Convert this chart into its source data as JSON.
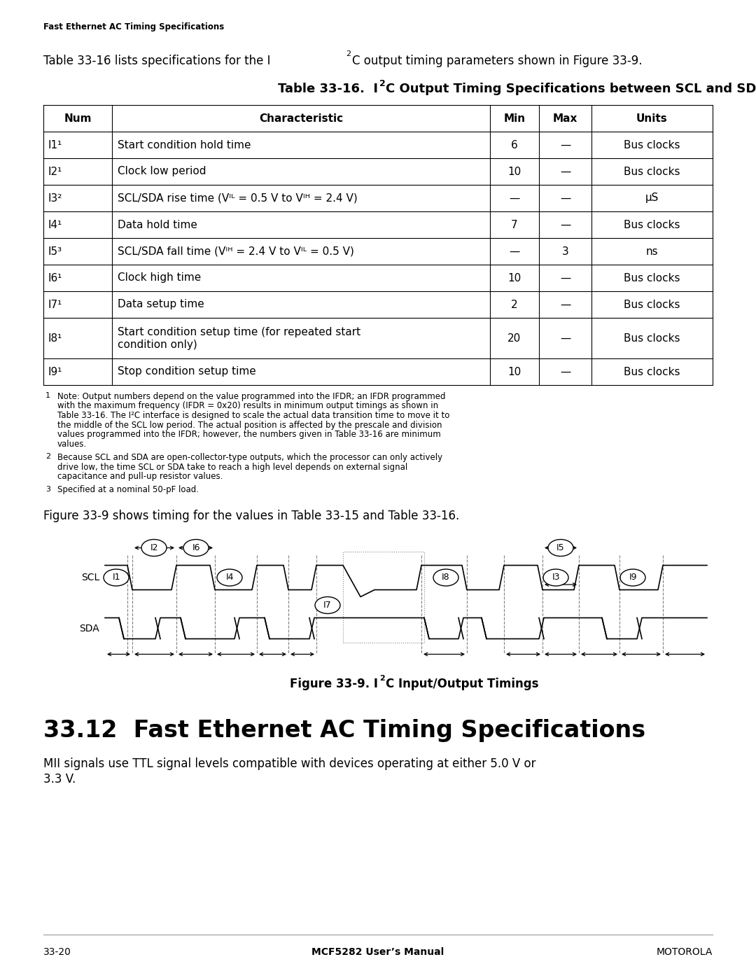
{
  "page_header": "Fast Ethernet AC Timing Specifications",
  "table_title_pre": "Table 33-16.  I",
  "table_title_post": "C Output Timing Specifications between SCL and SDA",
  "table_headers": [
    "Num",
    "Characteristic",
    "Min",
    "Max",
    "Units"
  ],
  "table_rows": [
    [
      "I1¹",
      "Start condition hold time",
      "6",
      "—",
      "Bus clocks"
    ],
    [
      "I2¹",
      "Clock low period",
      "10",
      "—",
      "Bus clocks"
    ],
    [
      "I3²",
      "SCL/SDA rise time (Vᴵᴸ = 0.5 V to Vᴵᴴ = 2.4 V)",
      "—",
      "—",
      "µS"
    ],
    [
      "I4¹",
      "Data hold time",
      "7",
      "—",
      "Bus clocks"
    ],
    [
      "I5³",
      "SCL/SDA fall time (Vᴵᴴ = 2.4 V to Vᴵᴸ = 0.5 V)",
      "—",
      "3",
      "ns"
    ],
    [
      "I6¹",
      "Clock high time",
      "10",
      "—",
      "Bus clocks"
    ],
    [
      "I7¹",
      "Data setup time",
      "2",
      "—",
      "Bus clocks"
    ],
    [
      "I8¹",
      "Start condition setup time (for repeated start\ncondition only)",
      "20",
      "—",
      "Bus clocks"
    ],
    [
      "I9¹",
      "Stop condition setup time",
      "10",
      "—",
      "Bus clocks"
    ]
  ],
  "footnote1_label": "1",
  "footnote1": "Note: Output numbers depend on the value programmed into the IFDR; an IFDR programmed\nwith the maximum frequency (IFDR = 0x20) results in minimum output timings as shown in\nTable 33-16. The I²C interface is designed to scale the actual data transition time to move it to\nthe middle of the SCL low period. The actual position is affected by the prescale and division\nvalues programmed into the IFDR; however, the numbers given in Table 33-16 are minimum\nvalues.",
  "footnote2_label": "2",
  "footnote2": "Because SCL and SDA are open-collector-type outputs, which the processor can only actively\ndrive low, the time SCL or SDA take to reach a high level depends on external signal\ncapacitance and pull-up resistor values.",
  "footnote3_label": "3",
  "footnote3": "Specified at a nominal 50-pF load.",
  "fig_before": "Figure 33-9 shows timing for the values in Table 33-15 and Table 33-16.",
  "fig_caption_pre": "Figure 33-9. I",
  "fig_caption_post": "C Input/Output Timings",
  "section_heading": "33.12  Fast Ethernet AC Timing Specifications",
  "section_text1": "MII signals use TTL signal levels compatible with devices operating at either 5.0 V or",
  "section_text2": "3.3 V.",
  "footer_left": "33-20",
  "footer_center": "MCF5282 User’s Manual",
  "footer_right": "MOTOROLA",
  "bg_color": "#ffffff",
  "text_color": "#000000"
}
